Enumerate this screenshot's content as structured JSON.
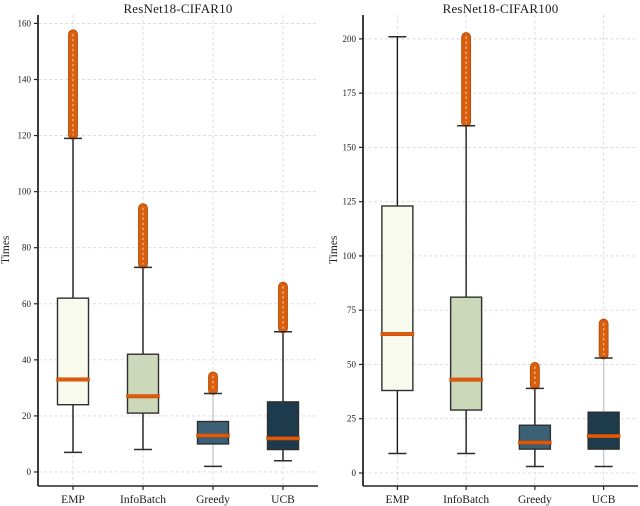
{
  "figure": {
    "background": "#ffffff",
    "style": {
      "median_color": "#e0590b",
      "median_edge": "#b84b00",
      "outlier_fill": "#d95f0e",
      "outlier_edge": "#b04800",
      "outlier_inner_dash": "rgba(255,235,210,0.6)",
      "box_edge": "#2f2f2f",
      "cap_color": "#2b2b2b",
      "spine_color": "#262626",
      "grid_color": "#d9d9d9",
      "text_color": "#1c1c1c",
      "whisker_dark": "#1a1a1a",
      "whisker_light": "#c8c8c8"
    }
  },
  "chart_data": [
    {
      "type": "box",
      "title": "ResNet18-CIFAR10",
      "ylabel": "Times",
      "xlabel": "",
      "categories": [
        "EMP",
        "InfoBatch",
        "Greedy",
        "UCB"
      ],
      "yticks": [
        0,
        20,
        40,
        60,
        80,
        100,
        120,
        140,
        160
      ],
      "ylim": [
        -5,
        163
      ],
      "grid": "dashed-both",
      "legend": "none",
      "boxes": [
        {
          "label": "EMP",
          "whislo": 7,
          "q1": 24,
          "med": 33,
          "q3": 62,
          "whishi": 119,
          "outlier_min": 120,
          "outlier_max": 157,
          "fill": "#f9faee",
          "whisker": "dark"
        },
        {
          "label": "InfoBatch",
          "whislo": 8,
          "q1": 21,
          "med": 27,
          "q3": 42,
          "whishi": 73,
          "outlier_min": 74,
          "outlier_max": 95,
          "fill": "#cdd8ba",
          "whisker": "dark"
        },
        {
          "label": "Greedy",
          "whislo": 2,
          "q1": 10,
          "med": 13,
          "q3": 18,
          "whishi": 28,
          "outlier_min": 29,
          "outlier_max": 35,
          "fill": "#3c6075",
          "whisker": "light"
        },
        {
          "label": "UCB",
          "whislo": 4,
          "q1": 8,
          "med": 12,
          "q3": 25,
          "whishi": 50,
          "outlier_min": 51,
          "outlier_max": 67,
          "fill": "#1e3b4d",
          "whisker": "dark"
        }
      ]
    },
    {
      "type": "box",
      "title": "ResNet18-CIFAR100",
      "ylabel": "Times",
      "xlabel": "",
      "categories": [
        "EMP",
        "InfoBatch",
        "Greedy",
        "UCB"
      ],
      "yticks": [
        0,
        25,
        50,
        75,
        100,
        125,
        150,
        175,
        200
      ],
      "ylim": [
        -6,
        211
      ],
      "grid": "dashed-both",
      "legend": "none",
      "boxes": [
        {
          "label": "EMP",
          "whislo": 9,
          "q1": 38,
          "med": 64,
          "q3": 123,
          "whishi": 201,
          "outlier_min": null,
          "outlier_max": null,
          "fill": "#f9faee",
          "whisker": "dark"
        },
        {
          "label": "InfoBatch",
          "whislo": 9,
          "q1": 29,
          "med": 43,
          "q3": 81,
          "whishi": 160,
          "outlier_min": 161,
          "outlier_max": 202,
          "fill": "#cdd8ba",
          "whisker": "dark"
        },
        {
          "label": "Greedy",
          "whislo": 3,
          "q1": 11,
          "med": 14,
          "q3": 22,
          "whishi": 39,
          "outlier_min": 40,
          "outlier_max": 50,
          "fill": "#3c6075",
          "whisker": "dark"
        },
        {
          "label": "UCB",
          "whislo": 3,
          "q1": 11,
          "med": 17,
          "q3": 28,
          "whishi": 53,
          "outlier_min": 54,
          "outlier_max": 70,
          "fill": "#1e3b4d",
          "whisker": "light"
        }
      ]
    }
  ]
}
